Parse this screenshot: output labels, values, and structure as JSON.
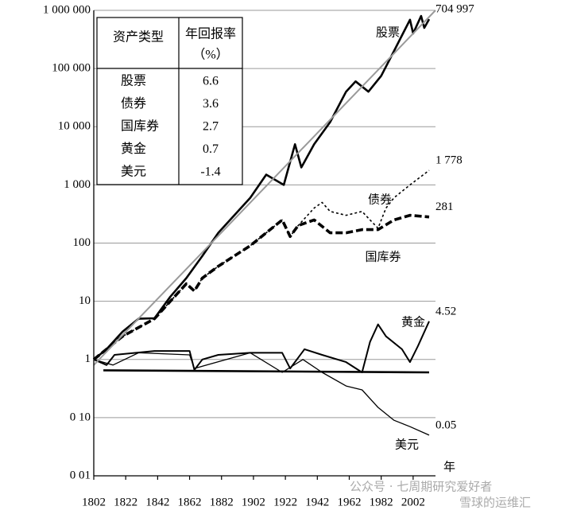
{
  "chart_data": {
    "type": "line",
    "log_y": true,
    "grid": true,
    "xlabel": "年",
    "xlim": [
      1802,
      2016
    ],
    "xticks": [
      1802,
      1822,
      1842,
      1862,
      1882,
      1902,
      1922,
      1942,
      1962,
      1982,
      2002
    ],
    "ylim": [
      0.01,
      1000000
    ],
    "yticks": [
      {
        "value": 1000000,
        "label": "1 000 000"
      },
      {
        "value": 100000,
        "label": "100 000"
      },
      {
        "value": 10000,
        "label": "10 000"
      },
      {
        "value": 1000,
        "label": "1 000"
      },
      100,
      10,
      1,
      {
        "value": 0.1,
        "label": "0 10"
      },
      {
        "value": 0.01,
        "label": "0 01"
      }
    ],
    "series": [
      {
        "name": "股票",
        "color": "#000000",
        "line_width": 2.6,
        "x": [
          1802,
          1810,
          1820,
          1830,
          1840,
          1850,
          1860,
          1870,
          1880,
          1890,
          1900,
          1910,
          1921,
          1928,
          1932,
          1940,
          1950,
          1960,
          1966,
          1974,
          1982,
          1990,
          2000,
          2002,
          2007,
          2009,
          2012
        ],
        "values": [
          1,
          1.5,
          3,
          5,
          5.1,
          12,
          25,
          60,
          150,
          300,
          600,
          1500,
          1000,
          5000,
          2000,
          5000,
          12000,
          40000,
          60000,
          40000,
          75000,
          200000,
          690000,
          400000,
          800000,
          500000,
          704997
        ],
        "value_labels": [
          null,
          null,
          null,
          null,
          null,
          null,
          null,
          null,
          null,
          null,
          null,
          null,
          null,
          null,
          null,
          null,
          null,
          null,
          null,
          null,
          null,
          null,
          null,
          null,
          null,
          null,
          "704 997"
        ]
      },
      {
        "name": "债券",
        "color": "#000000",
        "line_width": 1.6,
        "dash": "3,3",
        "x": [
          1802,
          1820,
          1840,
          1850,
          1860,
          1865,
          1870,
          1880,
          1890,
          1900,
          1910,
          1920,
          1925,
          1930,
          1940,
          1945,
          1950,
          1960,
          1970,
          1975,
          1980,
          1985,
          1990,
          2000,
          2012
        ],
        "values": [
          1,
          2.5,
          5,
          10,
          20,
          15,
          25,
          40,
          60,
          90,
          150,
          250,
          130,
          200,
          400,
          500,
          350,
          300,
          350,
          250,
          180,
          400,
          600,
          1000,
          1778
        ],
        "value_labels": [
          null,
          null,
          null,
          null,
          null,
          null,
          null,
          null,
          null,
          null,
          null,
          null,
          null,
          null,
          null,
          null,
          null,
          null,
          null,
          null,
          null,
          null,
          null,
          null,
          "1 778"
        ]
      },
      {
        "name": "国库券",
        "color": "#000000",
        "line_width": 3.6,
        "dash": "9,4",
        "x": [
          1802,
          1820,
          1840,
          1850,
          1860,
          1865,
          1870,
          1880,
          1890,
          1900,
          1910,
          1920,
          1925,
          1930,
          1940,
          1950,
          1960,
          1970,
          1980,
          1990,
          2000,
          2012
        ],
        "values": [
          1,
          2.5,
          5,
          10,
          20,
          15,
          25,
          40,
          60,
          90,
          150,
          250,
          130,
          200,
          250,
          150,
          150,
          170,
          170,
          250,
          300,
          281
        ]
      },
      {
        "name": "黄金",
        "color": "#000000",
        "line_width": 2,
        "x": [
          1802,
          1810,
          1815,
          1840,
          1862,
          1865,
          1870,
          1880,
          1900,
          1920,
          1925,
          1934,
          1945,
          1960,
          1970,
          1975,
          1980,
          1985,
          1995,
          2000,
          2005,
          2012
        ],
        "values": [
          1,
          0.8,
          1.2,
          1.4,
          1.4,
          0.66,
          1,
          1.2,
          1.3,
          1.3,
          0.7,
          1.5,
          1.2,
          0.9,
          0.6,
          2,
          4,
          2.5,
          1.5,
          0.9,
          1.7,
          4.52
        ]
      },
      {
        "name": "美元",
        "color": "#000000",
        "line_width": 1.3,
        "x": [
          1802,
          1814,
          1830,
          1862,
          1865,
          1900,
          1920,
          1933,
          1945,
          1960,
          1970,
          1980,
          1990,
          2000,
          2012
        ],
        "values": [
          1,
          0.8,
          1.3,
          1.2,
          0.7,
          1.3,
          0.6,
          1,
          0.6,
          0.35,
          0.3,
          0.15,
          0.09,
          0.07,
          0.05
        ]
      },
      {
        "color": "#9a9a9a",
        "line_width": 2,
        "x": [
          1802,
          2016
        ],
        "values": [
          0.8,
          1000000
        ]
      },
      {
        "color": "#000000",
        "line_width": 2.6,
        "x": [
          1808,
          2012
        ],
        "values": [
          0.65,
          0.6
        ]
      }
    ]
  },
  "table": {
    "columns": [
      "资产类型",
      "年回报率",
      "（%）"
    ],
    "rows": [
      [
        "股票",
        6.6
      ],
      [
        "债券",
        3.6
      ],
      [
        "国库券",
        2.7
      ],
      [
        "黄金",
        0.7
      ],
      [
        "美元",
        -1.4
      ]
    ]
  },
  "watermark": [
    "公众号 · 七周期研究爱好者",
    "雪球的运维汇"
  ]
}
